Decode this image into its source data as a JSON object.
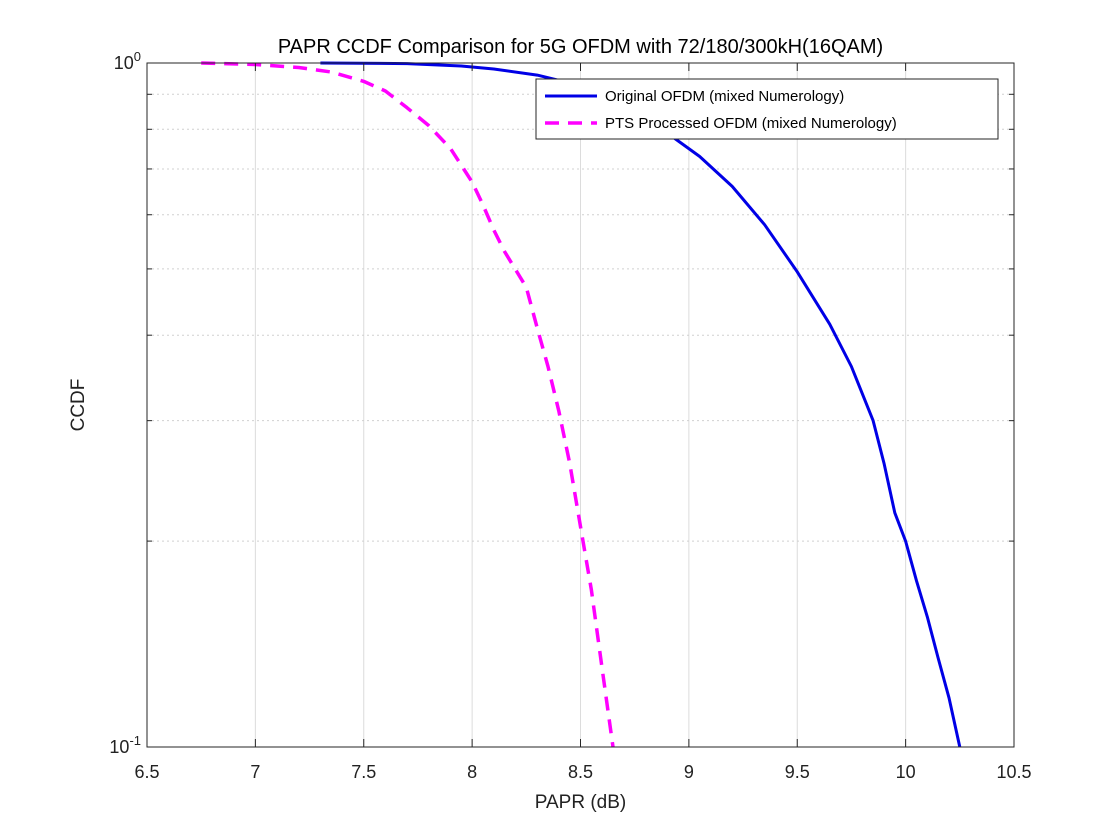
{
  "chart_data": {
    "type": "line",
    "title": "PAPR CCDF Comparison for 5G OFDM with 72/180/300kH(16QAM)",
    "xlabel": "PAPR (dB)",
    "ylabel": "CCDF",
    "xlim": [
      6.5,
      10.5
    ],
    "ylim": [
      0.1,
      1.0
    ],
    "yscale": "log",
    "grid": true,
    "legend": "top-right",
    "x_ticks": [
      "6.5",
      "7",
      "7.5",
      "8",
      "8.5",
      "9",
      "9.5",
      "10",
      "10.5"
    ],
    "y_ticks": [
      {
        "value": 1.0,
        "base": "10",
        "exp": "0"
      },
      {
        "value": 0.1,
        "base": "10",
        "exp": "-1"
      }
    ],
    "series": [
      {
        "name": "Original OFDM (mixed Numerology)",
        "color": "#0000e6",
        "style": "solid",
        "points": [
          [
            7.3,
            1.0
          ],
          [
            7.7,
            0.998
          ],
          [
            7.95,
            0.99
          ],
          [
            8.1,
            0.98
          ],
          [
            8.3,
            0.96
          ],
          [
            8.45,
            0.935
          ],
          [
            8.6,
            0.9
          ],
          [
            8.75,
            0.85
          ],
          [
            8.9,
            0.79
          ],
          [
            9.05,
            0.73
          ],
          [
            9.2,
            0.66
          ],
          [
            9.35,
            0.58
          ],
          [
            9.5,
            0.495
          ],
          [
            9.65,
            0.415
          ],
          [
            9.75,
            0.36
          ],
          [
            9.85,
            0.3
          ],
          [
            9.9,
            0.26
          ],
          [
            9.95,
            0.22
          ],
          [
            10.0,
            0.2
          ],
          [
            10.05,
            0.175
          ],
          [
            10.1,
            0.155
          ],
          [
            10.15,
            0.135
          ],
          [
            10.2,
            0.118
          ],
          [
            10.25,
            0.1
          ]
        ]
      },
      {
        "name": "PTS Processed OFDM (mixed Numerology)",
        "color": "#ff00ff",
        "style": "dashed",
        "points": [
          [
            6.75,
            1.0
          ],
          [
            7.0,
            0.995
          ],
          [
            7.2,
            0.985
          ],
          [
            7.35,
            0.97
          ],
          [
            7.5,
            0.94
          ],
          [
            7.6,
            0.91
          ],
          [
            7.7,
            0.86
          ],
          [
            7.8,
            0.81
          ],
          [
            7.9,
            0.75
          ],
          [
            8.0,
            0.67
          ],
          [
            8.05,
            0.62
          ],
          [
            8.1,
            0.57
          ],
          [
            8.15,
            0.53
          ],
          [
            8.25,
            0.47
          ],
          [
            8.3,
            0.41
          ],
          [
            8.35,
            0.36
          ],
          [
            8.4,
            0.31
          ],
          [
            8.45,
            0.26
          ],
          [
            8.5,
            0.21
          ],
          [
            8.55,
            0.17
          ],
          [
            8.6,
            0.13
          ],
          [
            8.65,
            0.1
          ]
        ]
      }
    ]
  }
}
